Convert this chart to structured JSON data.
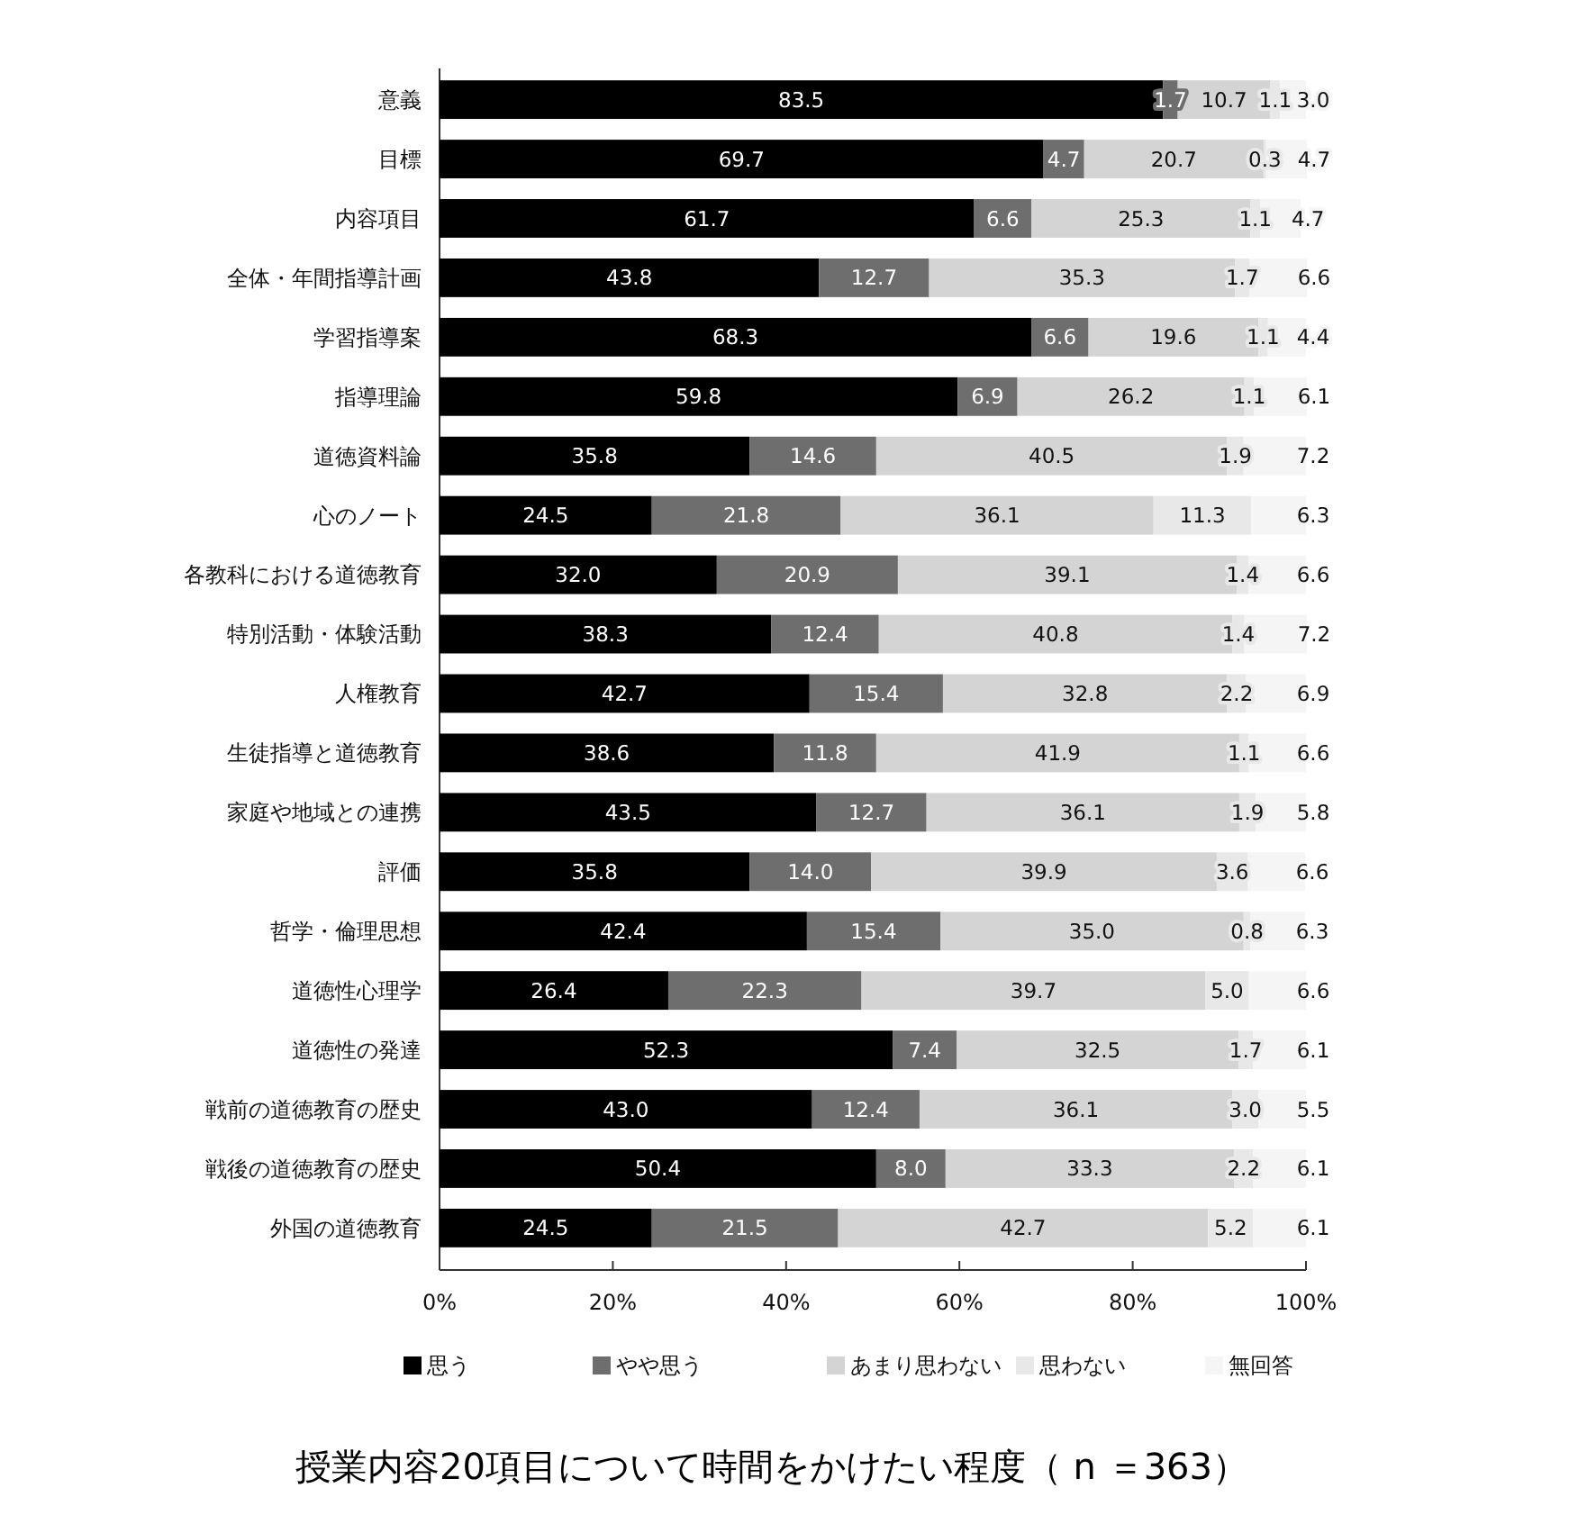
{
  "chart_data": {
    "type": "bar",
    "orientation": "horizontal",
    "stacked": true,
    "title": "授業内容20項目について時間をかけたい程度（ n ＝363）",
    "categories": [
      "意義",
      "目標",
      "内容項目",
      "全体・年間指導計画",
      "学習指導案",
      "指導理論",
      "道徳資料論",
      "心のノート",
      "各教科における道徳教育",
      "特別活動・体験活動",
      "人権教育",
      "生徒指導と道徳教育",
      "家庭や地域との連携",
      "評価",
      "哲学・倫理思想",
      "道徳性心理学",
      "道徳性の発達",
      "戦前の道徳教育の歴史",
      "戦後の道徳教育の歴史",
      "外国の道徳教育"
    ],
    "series": [
      {
        "name": "思う",
        "color": "#000000",
        "values": [
          83.5,
          69.7,
          61.7,
          43.8,
          68.3,
          59.8,
          35.8,
          24.5,
          32.0,
          38.3,
          42.7,
          38.6,
          43.5,
          35.8,
          42.4,
          26.4,
          52.3,
          43.0,
          50.4,
          24.5
        ],
        "value_labels": [
          "83.5",
          "69.7",
          "61.7",
          "43.8",
          "68.3",
          "59.8",
          "35.8",
          "24.5",
          "32.0",
          "38.3",
          "42.7",
          "38.6",
          "43.5",
          "35.8",
          "42.4",
          "26.4",
          "52.3",
          "43.0",
          "50.4",
          "24.5"
        ]
      },
      {
        "name": "やや思う",
        "color": "#6e6e6e",
        "values": [
          1.7,
          4.7,
          6.6,
          12.7,
          6.6,
          6.9,
          14.6,
          21.8,
          20.9,
          12.4,
          15.4,
          11.8,
          12.7,
          14.0,
          15.4,
          22.3,
          7.4,
          12.4,
          8.0,
          21.5
        ],
        "value_labels": [
          "1.7",
          "4.7",
          "6.6",
          "12.7",
          "6.6",
          "6.9",
          "14.6",
          "21.8",
          "20.9",
          "12.4",
          "15.4",
          "11.8",
          "12.7",
          "14.0",
          "15.4",
          "22.3",
          "7.4",
          "12.4",
          "8.0",
          "21.5"
        ]
      },
      {
        "name": "あまり思わない",
        "color": "#d4d4d4",
        "values": [
          10.7,
          20.7,
          25.3,
          35.3,
          19.6,
          26.2,
          40.5,
          36.1,
          39.1,
          40.8,
          32.8,
          41.9,
          36.1,
          39.9,
          35.0,
          39.7,
          32.5,
          36.1,
          33.3,
          42.7
        ],
        "value_labels": [
          "10.7",
          "20.7",
          "25.3",
          "35.3",
          "19.6",
          "26.2",
          "40.5",
          "36.1",
          "39.1",
          "40.8",
          "32.8",
          "41.9",
          "36.1",
          "39.9",
          "35.0",
          "39.7",
          "32.5",
          "36.1",
          "33.3",
          "42.7"
        ]
      },
      {
        "name": "思わない",
        "color": "#e8e8e8",
        "values": [
          1.1,
          0.3,
          1.1,
          1.7,
          1.1,
          1.1,
          1.9,
          11.3,
          1.4,
          1.4,
          2.2,
          1.1,
          1.9,
          3.6,
          0.8,
          5.0,
          1.7,
          3.0,
          2.2,
          5.2
        ],
        "value_labels": [
          "1.1",
          "0.3",
          "1.1",
          "1.7",
          "1.1",
          "1.1",
          "1.9",
          "11.3",
          "1.4",
          "1.4",
          "2.2",
          "1.1",
          "1.9",
          "3.6",
          "0.8",
          "5.0",
          "1.7",
          "3.0",
          "2.2",
          "5.2"
        ]
      },
      {
        "name": "無回答",
        "color": "#f5f5f5",
        "values": [
          3.0,
          4.7,
          4.7,
          6.6,
          4.4,
          6.1,
          7.2,
          6.3,
          6.6,
          7.2,
          6.9,
          6.6,
          5.8,
          6.6,
          6.3,
          6.6,
          6.1,
          5.5,
          6.1,
          6.1
        ],
        "value_labels": [
          "3.0",
          "4.7",
          "4.7",
          "6.6",
          "4.4",
          "6.1",
          "7.2",
          "6.3",
          "6.6",
          "7.2",
          "6.9",
          "6.6",
          "5.8",
          "6.6",
          "6.3",
          "6.6",
          "6.1",
          "5.5",
          "6.1",
          "6.1"
        ]
      }
    ],
    "xlim": [
      0,
      100
    ],
    "xticks": [
      {
        "value": 0,
        "label": "0%"
      },
      {
        "value": 20,
        "label": "20%"
      },
      {
        "value": 40,
        "label": "40%"
      },
      {
        "value": 60,
        "label": "60%"
      },
      {
        "value": 80,
        "label": "80%"
      },
      {
        "value": 100,
        "label": "100%"
      }
    ],
    "legend": "bottom",
    "grid": false
  }
}
